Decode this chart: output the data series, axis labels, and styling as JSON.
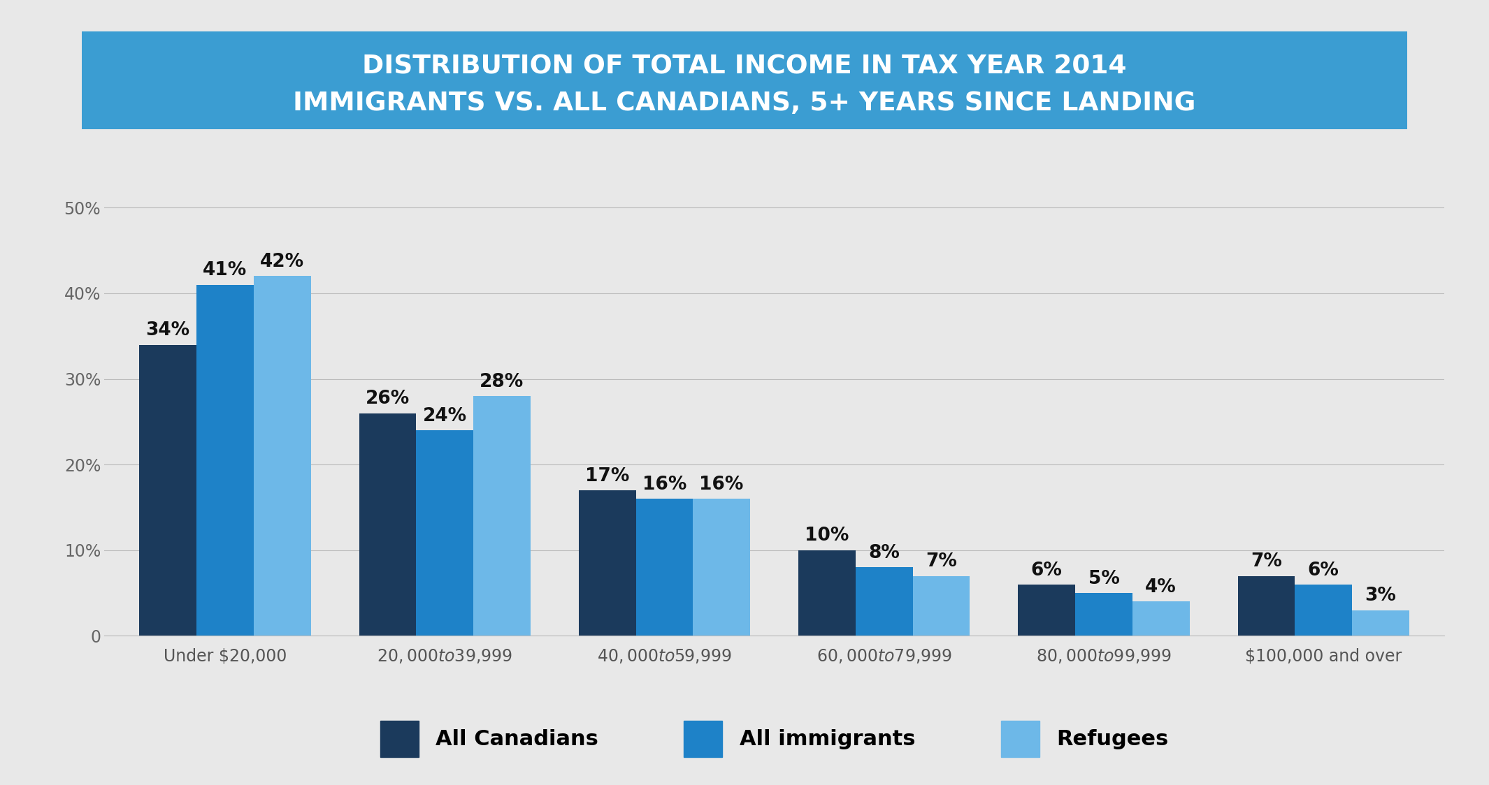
{
  "title_line1": "DISTRIBUTION OF TOTAL INCOME IN TAX YEAR 2014",
  "title_line2": "IMMIGRANTS VS. ALL CANADIANS, 5+ YEARS SINCE LANDING",
  "title_bg_color": "#3B9DD2",
  "title_text_color": "#FFFFFF",
  "background_color": "#E8E8E8",
  "plot_bg_color": "#E8E8E8",
  "categories": [
    "Under $20,000",
    "$20,000 to $39,999",
    "$40,000 to $59,999",
    "$60,000 to $79,999",
    "$80,000 to $99,999",
    "$100,000 and over"
  ],
  "series": {
    "All Canadians": [
      34,
      26,
      17,
      10,
      6,
      7
    ],
    "All immigrants": [
      41,
      24,
      16,
      8,
      5,
      6
    ],
    "Refugees": [
      42,
      28,
      16,
      7,
      4,
      3
    ]
  },
  "colors": {
    "All Canadians": "#1B3A5C",
    "All immigrants": "#1E82C8",
    "Refugees": "#6DB8E8"
  },
  "legend_labels": [
    "All Canadians",
    "All immigrants",
    "Refugees"
  ],
  "ylim": [
    0,
    55
  ],
  "yticks": [
    0,
    10,
    20,
    30,
    40,
    50
  ],
  "ytick_labels": [
    "0",
    "10%",
    "20%",
    "30%",
    "40%",
    "50%"
  ],
  "bar_width": 0.26,
  "tick_fontsize": 17,
  "legend_fontsize": 22,
  "value_fontsize": 19
}
